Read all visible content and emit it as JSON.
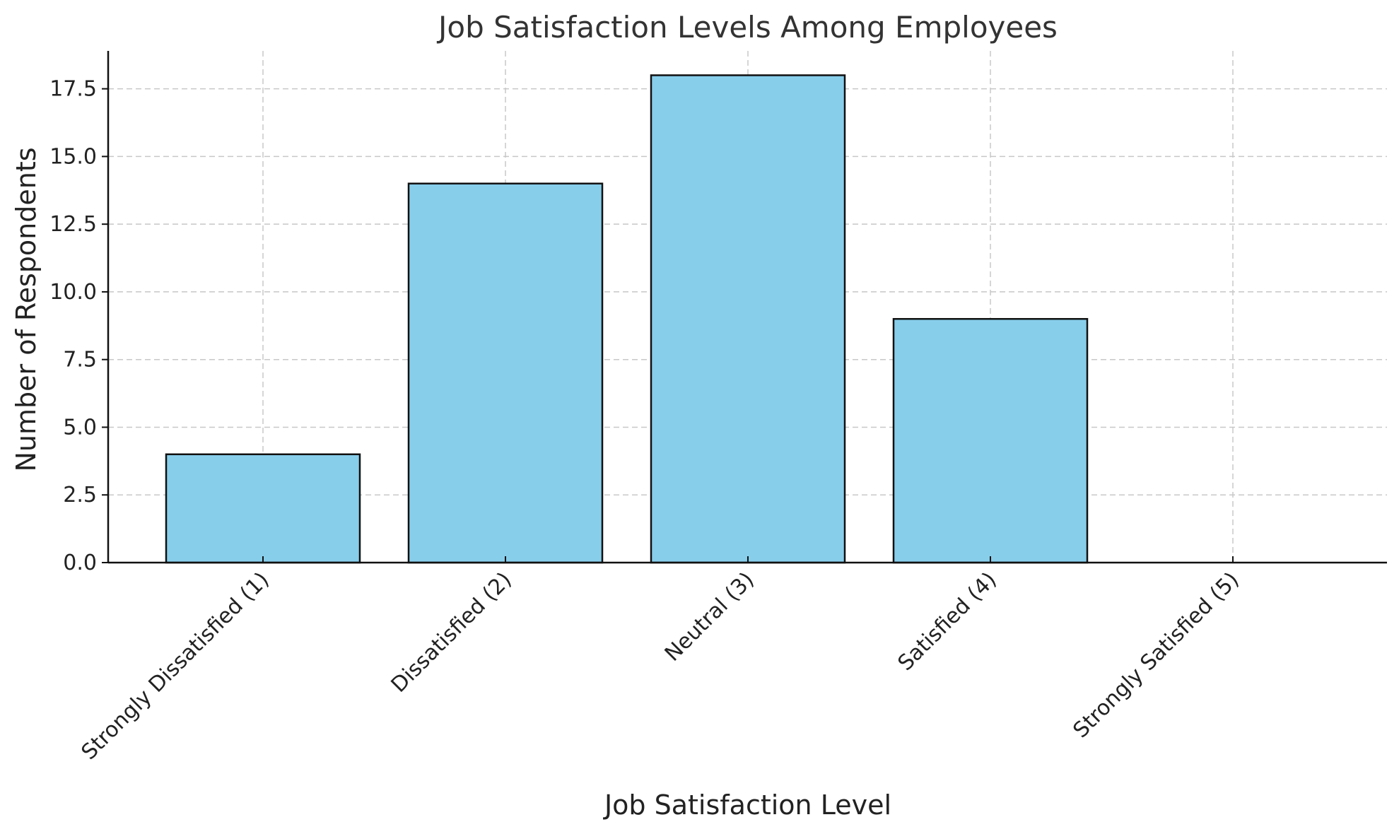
{
  "chart_data": {
    "type": "bar",
    "title": "Job Satisfaction Levels Among Employees",
    "xlabel": "Job Satisfaction Level",
    "ylabel": "Number of Respondents",
    "categories": [
      "Strongly Dissatisfied (1)",
      "Dissatisfied (2)",
      "Neutral (3)",
      "Satisfied (4)",
      "Strongly Satisfied (5)"
    ],
    "values": [
      4,
      14,
      18,
      9,
      0
    ],
    "ylim": [
      0,
      18.9
    ],
    "yticks": [
      0.0,
      2.5,
      5.0,
      7.5,
      10.0,
      12.5,
      15.0,
      17.5
    ],
    "ytick_labels": [
      "0.0",
      "2.5",
      "5.0",
      "7.5",
      "10.0",
      "12.5",
      "15.0",
      "17.5"
    ],
    "grid": true,
    "bar_color": "#87CEEB",
    "edge_color": "#111111"
  }
}
